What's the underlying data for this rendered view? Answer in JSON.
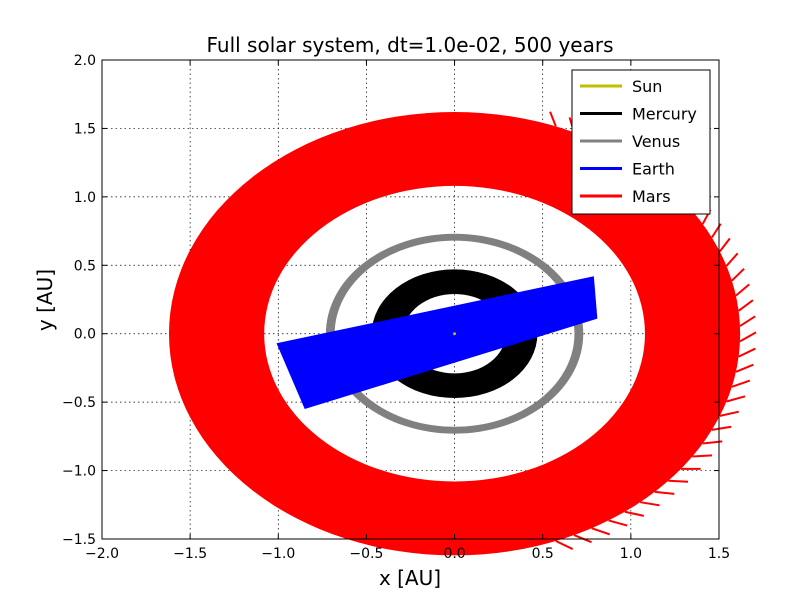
{
  "chart_data": {
    "type": "line",
    "title": "Full solar system, dt=1.0e-02, 500 years",
    "xlabel": "x [AU]",
    "ylabel": "y [AU]",
    "xlim": [
      -2.0,
      1.5
    ],
    "ylim": [
      -1.5,
      2.0
    ],
    "xticks": [
      -2.0,
      -1.5,
      -1.0,
      -0.5,
      0.0,
      0.5,
      1.0,
      1.5
    ],
    "yticks": [
      -1.5,
      -1.0,
      -0.5,
      0.0,
      0.5,
      1.0,
      1.5,
      2.0
    ],
    "xtick_labels": [
      "−2.0",
      "−1.5",
      "−1.0",
      "−0.5",
      "0.0",
      "0.5",
      "1.0",
      "1.5"
    ],
    "ytick_labels": [
      "−1.5",
      "−1.0",
      "−0.5",
      "0.0",
      "0.5",
      "1.0",
      "1.5",
      "2.0"
    ],
    "grid": true,
    "legend_position": "top-right",
    "series": [
      {
        "name": "Sun",
        "color": "#bfbf00",
        "orbit": {
          "cx": 0.0,
          "cy": 0.0,
          "r_inner": 0.0,
          "r_outer": 0.0
        }
      },
      {
        "name": "Mercury",
        "color": "#000000",
        "orbit": {
          "cx": 0.0,
          "cy": 0.0,
          "r_inner": 0.29,
          "r_outer": 0.47
        }
      },
      {
        "name": "Venus",
        "color": "#808080",
        "orbit": {
          "cx": 0.0,
          "cy": 0.0,
          "r_inner": 0.68,
          "r_outer": 0.73
        }
      },
      {
        "name": "Earth",
        "color": "#0000ff",
        "segments": [
          {
            "start": [
              -1.01,
              -0.07
            ],
            "end": [
              0.79,
              0.42
            ]
          },
          {
            "start": [
              -0.85,
              -0.55
            ],
            "end": [
              0.81,
              0.11
            ]
          }
        ]
      },
      {
        "name": "Mars",
        "color": "#ff0000",
        "orbit": {
          "cx": 0.0,
          "cy": 0.0,
          "r_inner": 1.08,
          "r_outer": 1.62
        }
      }
    ]
  }
}
